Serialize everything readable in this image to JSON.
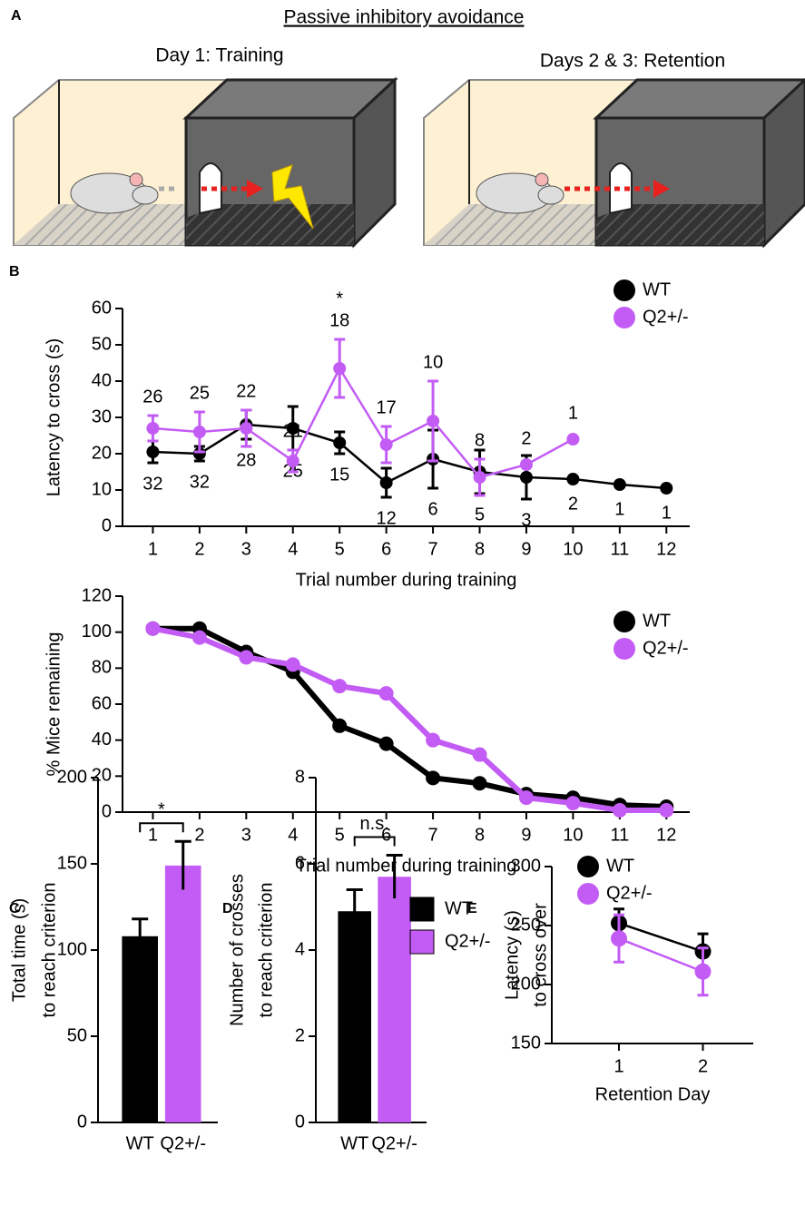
{
  "panel_labels": [
    "A",
    "B",
    "C",
    "D",
    "E"
  ],
  "diagram": {
    "title": "Passive inhibitory avoidance",
    "left_caption": "Day 1: Training",
    "right_caption": "Days 2 & 3: Retention"
  },
  "chart_data": [
    {
      "type": "line",
      "y_label": [
        "Latency to cross (s)"
      ],
      "x_label": "Trial number during training",
      "x": [
        1,
        2,
        3,
        4,
        5,
        6,
        7,
        8,
        9,
        10,
        11,
        12
      ],
      "xlim": [
        0.35,
        12.5
      ],
      "xticks": [
        1,
        2,
        3,
        4,
        5,
        6,
        7,
        8,
        9,
        10,
        11,
        12
      ],
      "ylim": [
        0,
        60
      ],
      "yticks": [
        0,
        10,
        20,
        30,
        40,
        50,
        60
      ],
      "annotation": {
        "text": "*",
        "color": "#e8201e"
      },
      "series": [
        {
          "name": "WT",
          "color": "#000000",
          "values": [
            20.5,
            20,
            28,
            27,
            23,
            12,
            18.5,
            15,
            13.5,
            13,
            11.5,
            10.5
          ],
          "errors": [
            3,
            2,
            4,
            6,
            3,
            4,
            8,
            6,
            6,
            0,
            0,
            0
          ],
          "counts": [
            32,
            32,
            28,
            25,
            15,
            12,
            6,
            5,
            3,
            2,
            1,
            1
          ]
        },
        {
          "name": "Q2+/-",
          "color": "#c35cf5",
          "values": [
            27,
            26,
            27,
            18,
            43.5,
            22.5,
            29,
            13.5,
            17,
            24,
            null,
            null
          ],
          "errors": [
            3.5,
            5.5,
            5,
            3,
            8,
            5,
            11,
            5,
            0,
            0,
            null,
            null
          ],
          "counts": [
            26,
            25,
            22,
            21,
            18,
            17,
            10,
            8,
            2,
            1,
            null,
            null
          ]
        }
      ]
    },
    {
      "type": "line",
      "y_label": [
        "% Mice remaining"
      ],
      "x_label": "Trial number during training",
      "x": [
        1,
        2,
        3,
        4,
        5,
        6,
        7,
        8,
        9,
        10,
        11,
        12
      ],
      "xlim": [
        0.35,
        12.5
      ],
      "xticks": [
        1,
        2,
        3,
        4,
        5,
        6,
        7,
        8,
        9,
        10,
        11,
        12
      ],
      "ylim": [
        0,
        120
      ],
      "yticks": [
        0,
        20,
        40,
        60,
        80,
        100,
        120
      ],
      "series": [
        {
          "name": "WT",
          "color": "#000000",
          "values": [
            102,
            102,
            89,
            78,
            48,
            38,
            19,
            16,
            10,
            8,
            4,
            3
          ]
        },
        {
          "name": "Q2+/-",
          "color": "#c35cf5",
          "values": [
            102,
            97,
            86,
            82,
            70,
            66,
            40,
            32,
            8,
            5,
            1,
            1
          ]
        }
      ]
    },
    {
      "type": "bar",
      "y_label": [
        "Total time (s)",
        "to reach criterion"
      ],
      "categories": [
        "WT",
        "Q2+/-"
      ],
      "values": [
        108,
        149
      ],
      "errors": [
        10,
        14
      ],
      "colors": [
        "#000000",
        "#c35cf5"
      ],
      "ylim": [
        0,
        200
      ],
      "yticks": [
        0,
        50,
        100,
        150,
        200
      ],
      "annotation": {
        "text": "*",
        "color": "#e8201e"
      }
    },
    {
      "type": "bar",
      "y_label": [
        "Number of crosses",
        "to reach criterion"
      ],
      "categories": [
        "WT",
        "Q2+/-"
      ],
      "values": [
        4.9,
        5.7
      ],
      "errors": [
        0.5,
        0.5
      ],
      "colors": [
        "#000000",
        "#c35cf5"
      ],
      "ylim": [
        0,
        8
      ],
      "yticks": [
        0,
        2,
        4,
        6,
        8
      ],
      "annotation": {
        "text": "n.s.",
        "color": "#000000"
      },
      "legend": [
        {
          "name": "WT",
          "color": "#000000"
        },
        {
          "name": "Q2+/-",
          "color": "#c35cf5"
        }
      ]
    },
    {
      "type": "line",
      "y_label": [
        "Latency (s)",
        "to cross over"
      ],
      "x_label": "Retention Day",
      "x": [
        1,
        2
      ],
      "xlim": [
        0.2,
        2.6
      ],
      "xticks": [
        1,
        2
      ],
      "ylim": [
        150,
        300
      ],
      "yticks": [
        150,
        200,
        250,
        300
      ],
      "series": [
        {
          "name": "WT",
          "color": "#000000",
          "values": [
            252,
            228
          ],
          "errors": [
            12,
            15
          ]
        },
        {
          "name": "Q2+/-",
          "color": "#c35cf5",
          "values": [
            239,
            211
          ],
          "errors": [
            20,
            20
          ]
        }
      ]
    }
  ]
}
